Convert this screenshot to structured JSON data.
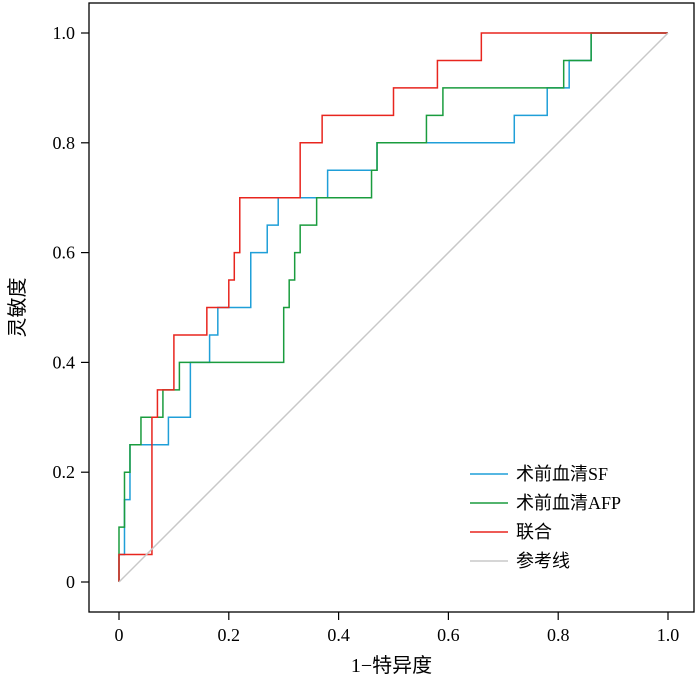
{
  "chart_data": {
    "type": "line",
    "title": "",
    "xlabel": "1−特异度",
    "ylabel": "灵敏度",
    "xlim": [
      0,
      1
    ],
    "ylim": [
      0,
      1
    ],
    "xticks": [
      "0",
      "0.2",
      "0.4",
      "0.6",
      "0.8",
      "1.0"
    ],
    "yticks": [
      "0",
      "0.2",
      "0.4",
      "0.6",
      "0.8",
      "1.0"
    ],
    "grid": false,
    "legend_position": "bottom-right",
    "series": [
      {
        "name": "术前血清SF",
        "color": "#1f9fd8",
        "points": [
          [
            0,
            0
          ],
          [
            0,
            0.05
          ],
          [
            0.01,
            0.05
          ],
          [
            0.01,
            0.15
          ],
          [
            0.02,
            0.15
          ],
          [
            0.02,
            0.25
          ],
          [
            0.09,
            0.25
          ],
          [
            0.09,
            0.3
          ],
          [
            0.13,
            0.3
          ],
          [
            0.13,
            0.4
          ],
          [
            0.165,
            0.4
          ],
          [
            0.165,
            0.45
          ],
          [
            0.18,
            0.45
          ],
          [
            0.18,
            0.5
          ],
          [
            0.24,
            0.5
          ],
          [
            0.24,
            0.6
          ],
          [
            0.27,
            0.6
          ],
          [
            0.27,
            0.65
          ],
          [
            0.29,
            0.65
          ],
          [
            0.29,
            0.7
          ],
          [
            0.38,
            0.7
          ],
          [
            0.38,
            0.75
          ],
          [
            0.47,
            0.75
          ],
          [
            0.47,
            0.8
          ],
          [
            0.72,
            0.8
          ],
          [
            0.72,
            0.85
          ],
          [
            0.78,
            0.85
          ],
          [
            0.78,
            0.9
          ],
          [
            0.82,
            0.9
          ],
          [
            0.82,
            0.95
          ],
          [
            0.86,
            0.95
          ],
          [
            0.86,
            1.0
          ],
          [
            1.0,
            1.0
          ]
        ]
      },
      {
        "name": "术前血清AFP",
        "color": "#1a9c3e",
        "points": [
          [
            0,
            0
          ],
          [
            0,
            0.1
          ],
          [
            0.01,
            0.1
          ],
          [
            0.01,
            0.2
          ],
          [
            0.02,
            0.2
          ],
          [
            0.02,
            0.25
          ],
          [
            0.04,
            0.25
          ],
          [
            0.04,
            0.3
          ],
          [
            0.08,
            0.3
          ],
          [
            0.08,
            0.35
          ],
          [
            0.11,
            0.35
          ],
          [
            0.11,
            0.4
          ],
          [
            0.3,
            0.4
          ],
          [
            0.3,
            0.5
          ],
          [
            0.31,
            0.5
          ],
          [
            0.31,
            0.55
          ],
          [
            0.32,
            0.55
          ],
          [
            0.32,
            0.6
          ],
          [
            0.33,
            0.6
          ],
          [
            0.33,
            0.65
          ],
          [
            0.36,
            0.65
          ],
          [
            0.36,
            0.7
          ],
          [
            0.46,
            0.7
          ],
          [
            0.46,
            0.75
          ],
          [
            0.47,
            0.75
          ],
          [
            0.47,
            0.8
          ],
          [
            0.56,
            0.8
          ],
          [
            0.56,
            0.85
          ],
          [
            0.59,
            0.85
          ],
          [
            0.59,
            0.9
          ],
          [
            0.81,
            0.9
          ],
          [
            0.81,
            0.95
          ],
          [
            0.86,
            0.95
          ],
          [
            0.86,
            1.0
          ],
          [
            1.0,
            1.0
          ]
        ]
      },
      {
        "name": "联合",
        "color": "#e8251e",
        "points": [
          [
            0,
            0
          ],
          [
            0,
            0.05
          ],
          [
            0.06,
            0.05
          ],
          [
            0.06,
            0.3
          ],
          [
            0.07,
            0.3
          ],
          [
            0.07,
            0.35
          ],
          [
            0.1,
            0.35
          ],
          [
            0.1,
            0.45
          ],
          [
            0.16,
            0.45
          ],
          [
            0.16,
            0.5
          ],
          [
            0.2,
            0.5
          ],
          [
            0.2,
            0.55
          ],
          [
            0.21,
            0.55
          ],
          [
            0.21,
            0.6
          ],
          [
            0.22,
            0.6
          ],
          [
            0.22,
            0.7
          ],
          [
            0.33,
            0.7
          ],
          [
            0.33,
            0.8
          ],
          [
            0.37,
            0.8
          ],
          [
            0.37,
            0.85
          ],
          [
            0.5,
            0.85
          ],
          [
            0.5,
            0.9
          ],
          [
            0.58,
            0.9
          ],
          [
            0.58,
            0.95
          ],
          [
            0.66,
            0.95
          ],
          [
            0.66,
            1.0
          ],
          [
            1.0,
            1.0
          ]
        ]
      },
      {
        "name": "参考线",
        "color": "#c8c8c8",
        "points": [
          [
            0,
            0
          ],
          [
            1,
            1
          ]
        ]
      }
    ]
  }
}
